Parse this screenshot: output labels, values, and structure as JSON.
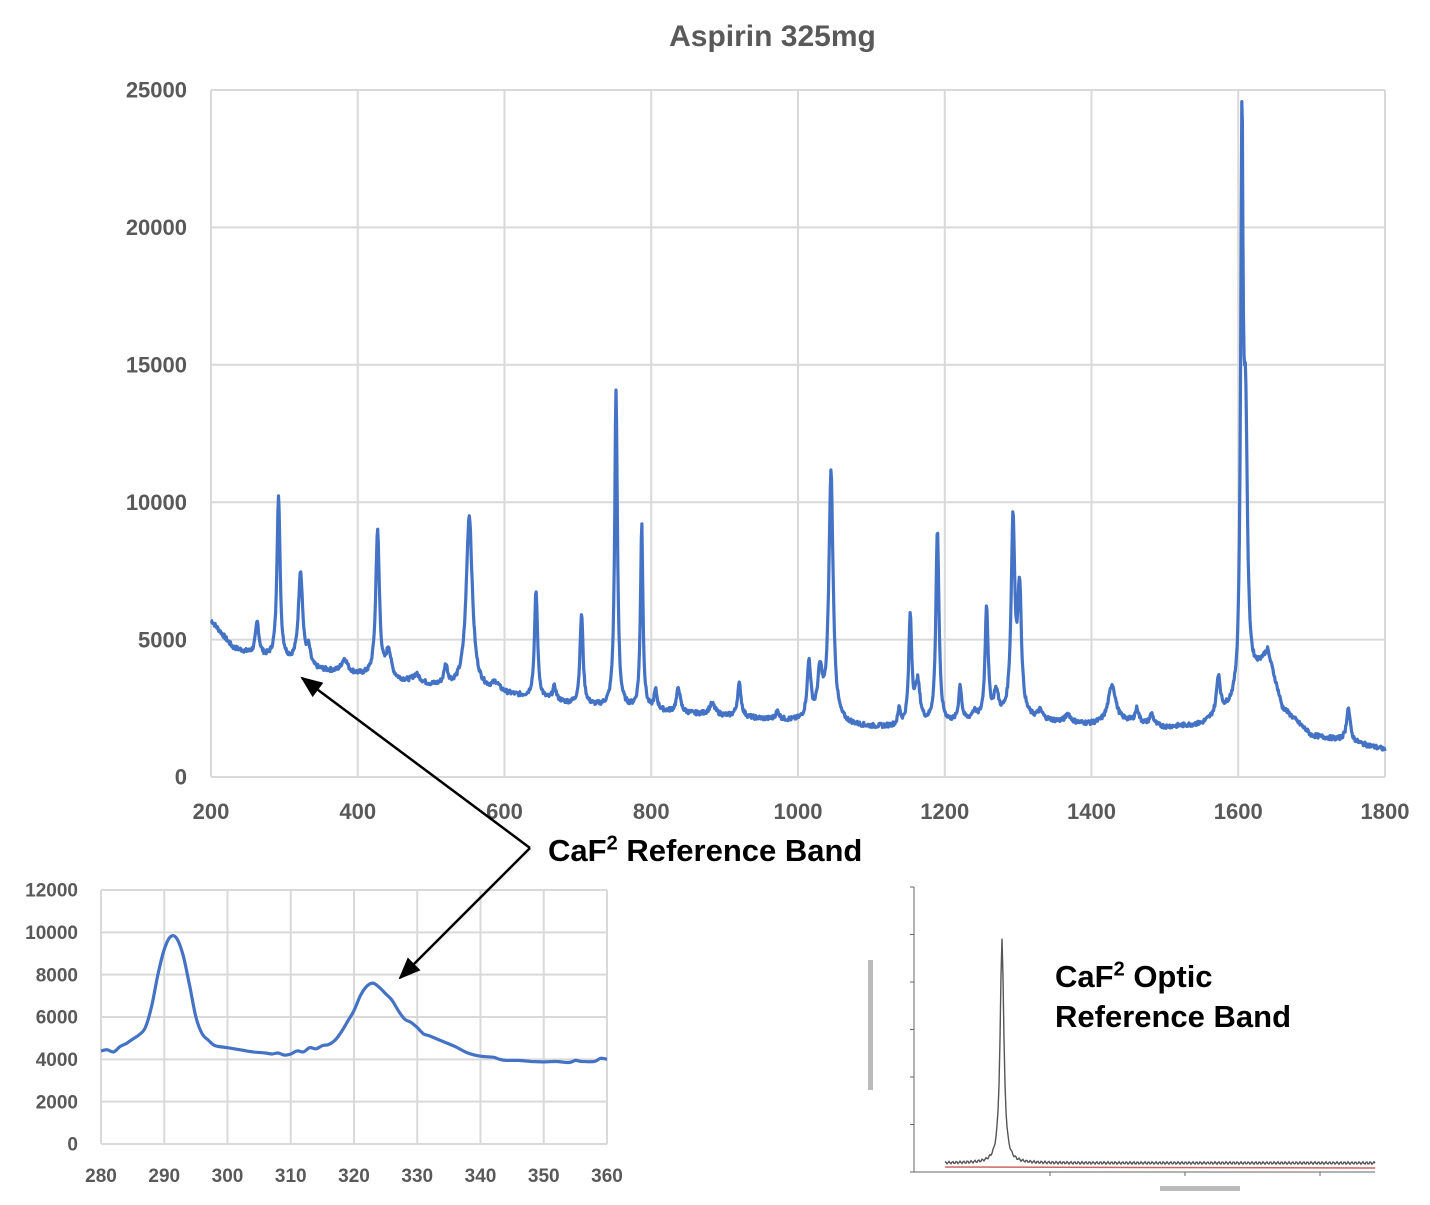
{
  "colors": {
    "series": "#4472c4",
    "grid": "#d9d9d9",
    "axis_text": "#595959",
    "inset_line": "#555555",
    "inset_baseline": "#cc6666"
  },
  "chart_data": [
    {
      "type": "line",
      "title": "Aspirin 325mg",
      "xlabel": "",
      "ylabel": "",
      "xlim": [
        200,
        1800
      ],
      "ylim": [
        0,
        25000
      ],
      "xticks": [
        200,
        400,
        600,
        800,
        1000,
        1200,
        1400,
        1600,
        1800
      ],
      "yticks": [
        0,
        5000,
        10000,
        15000,
        20000,
        25000
      ],
      "grid": true,
      "series": [
        {
          "baseline": [
            [
              200,
              5700
            ],
            [
              230,
              4700
            ],
            [
              260,
              4400
            ],
            [
              300,
              4200
            ],
            [
              340,
              3900
            ],
            [
              400,
              3700
            ],
            [
              450,
              3500
            ],
            [
              500,
              3300
            ],
            [
              550,
              3200
            ],
            [
              600,
              3000
            ],
            [
              650,
              2800
            ],
            [
              700,
              2600
            ],
            [
              750,
              2500
            ],
            [
              800,
              2400
            ],
            [
              850,
              2300
            ],
            [
              900,
              2200
            ],
            [
              950,
              2100
            ],
            [
              1000,
              2000
            ],
            [
              1050,
              1900
            ],
            [
              1100,
              1800
            ],
            [
              1150,
              1800
            ],
            [
              1200,
              1900
            ],
            [
              1250,
              2000
            ],
            [
              1300,
              2100
            ],
            [
              1350,
              2000
            ],
            [
              1400,
              1900
            ],
            [
              1450,
              2000
            ],
            [
              1500,
              1800
            ],
            [
              1550,
              1900
            ],
            [
              1600,
              2600
            ],
            [
              1640,
              4500
            ],
            [
              1660,
              2500
            ],
            [
              1700,
              1500
            ],
            [
              1750,
              1300
            ],
            [
              1800,
              1000
            ]
          ],
          "peaks": [
            [
              263,
              1200,
              3
            ],
            [
              292,
              6000,
              2.5
            ],
            [
              322,
              3400,
              3.5
            ],
            [
              333,
              600,
              3
            ],
            [
              382,
              500,
              5
            ],
            [
              427,
              5300,
              3
            ],
            [
              442,
              1000,
              4
            ],
            [
              480,
              300,
              6
            ],
            [
              520,
              700,
              3
            ],
            [
              552,
              6300,
              5
            ],
            [
              588,
              300,
              6
            ],
            [
              643,
              3900,
              2.5
            ],
            [
              668,
              500,
              3
            ],
            [
              705,
              3300,
              2.5
            ],
            [
              752,
              11600,
              2.2
            ],
            [
              787,
              6800,
              2
            ],
            [
              806,
              700,
              2.5
            ],
            [
              837,
              900,
              3
            ],
            [
              883,
              400,
              5
            ],
            [
              920,
              1200,
              3
            ],
            [
              972,
              300,
              3
            ],
            [
              1015,
              2100,
              3
            ],
            [
              1030,
              1700,
              4
            ],
            [
              1045,
              9100,
              3.5
            ],
            [
              1138,
              600,
              2
            ],
            [
              1153,
              3900,
              2.5
            ],
            [
              1163,
              1500,
              4
            ],
            [
              1190,
              7100,
              2.5
            ],
            [
              1221,
              1300,
              2.5
            ],
            [
              1240,
              300,
              4
            ],
            [
              1257,
              4100,
              2.5
            ],
            [
              1270,
              900,
              4
            ],
            [
              1293,
              7100,
              3
            ],
            [
              1302,
              4500,
              3
            ],
            [
              1330,
              300,
              4
            ],
            [
              1368,
              300,
              4
            ],
            [
              1428,
              1400,
              6
            ],
            [
              1462,
              500,
              3
            ],
            [
              1482,
              400,
              3
            ],
            [
              1573,
              1400,
              3
            ],
            [
              1605,
              19700,
              2
            ],
            [
              1610,
              9000,
              3
            ],
            [
              1750,
              1200,
              3
            ]
          ]
        }
      ]
    },
    {
      "type": "line",
      "xlim": [
        280,
        360
      ],
      "ylim": [
        0,
        12000
      ],
      "xticks": [
        280,
        290,
        300,
        310,
        320,
        330,
        340,
        350,
        360
      ],
      "yticks": [
        0,
        2000,
        4000,
        6000,
        8000,
        10000,
        12000
      ],
      "grid": true,
      "series": [
        {
          "points": [
            [
              280,
              4400
            ],
            [
              281,
              4450
            ],
            [
              282,
              4350
            ],
            [
              283,
              4600
            ],
            [
              284,
              4750
            ],
            [
              285,
              4950
            ],
            [
              286,
              5150
            ],
            [
              287,
              5500
            ],
            [
              288,
              6500
            ],
            [
              289,
              8000
            ],
            [
              290,
              9200
            ],
            [
              291,
              9800
            ],
            [
              292,
              9700
            ],
            [
              293,
              8900
            ],
            [
              294,
              7500
            ],
            [
              295,
              6000
            ],
            [
              296,
              5200
            ],
            [
              297,
              4900
            ],
            [
              298,
              4650
            ],
            [
              300,
              4550
            ],
            [
              302,
              4450
            ],
            [
              304,
              4350
            ],
            [
              306,
              4300
            ],
            [
              307,
              4250
            ],
            [
              308,
              4300
            ],
            [
              309,
              4200
            ],
            [
              310,
              4250
            ],
            [
              311,
              4400
            ],
            [
              312,
              4350
            ],
            [
              313,
              4550
            ],
            [
              314,
              4500
            ],
            [
              315,
              4650
            ],
            [
              316,
              4700
            ],
            [
              317,
              4900
            ],
            [
              318,
              5300
            ],
            [
              319,
              5800
            ],
            [
              320,
              6300
            ],
            [
              321,
              7000
            ],
            [
              322,
              7450
            ],
            [
              323,
              7600
            ],
            [
              324,
              7400
            ],
            [
              325,
              7100
            ],
            [
              326,
              6800
            ],
            [
              327,
              6300
            ],
            [
              328,
              5900
            ],
            [
              329,
              5750
            ],
            [
              330,
              5500
            ],
            [
              331,
              5200
            ],
            [
              332,
              5100
            ],
            [
              334,
              4850
            ],
            [
              336,
              4600
            ],
            [
              338,
              4300
            ],
            [
              340,
              4150
            ],
            [
              342,
              4100
            ],
            [
              343,
              4000
            ],
            [
              344,
              3950
            ],
            [
              346,
              3950
            ],
            [
              348,
              3900
            ],
            [
              350,
              3880
            ],
            [
              352,
              3900
            ],
            [
              354,
              3850
            ],
            [
              355,
              3950
            ],
            [
              356,
              3900
            ],
            [
              358,
              3900
            ],
            [
              359,
              4050
            ],
            [
              360,
              4000
            ]
          ]
        }
      ]
    }
  ],
  "annotations": {
    "callout_prefix": "CaF",
    "callout_sup": "2",
    "callout_text": " Reference Band",
    "ref_line1_prefix": "CaF",
    "ref_line1_sup": "2",
    "ref_line1_text": " Optic",
    "ref_line2": "Reference Band"
  }
}
